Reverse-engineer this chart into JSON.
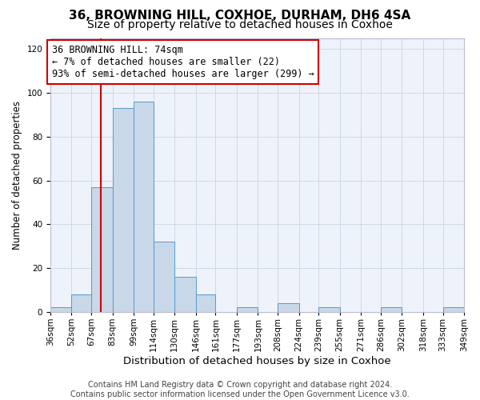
{
  "title": "36, BROWNING HILL, COXHOE, DURHAM, DH6 4SA",
  "subtitle": "Size of property relative to detached houses in Coxhoe",
  "xlabel": "Distribution of detached houses by size in Coxhoe",
  "ylabel": "Number of detached properties",
  "bin_labels": [
    "36sqm",
    "52sqm",
    "67sqm",
    "83sqm",
    "99sqm",
    "114sqm",
    "130sqm",
    "146sqm",
    "161sqm",
    "177sqm",
    "193sqm",
    "208sqm",
    "224sqm",
    "239sqm",
    "255sqm",
    "271sqm",
    "286sqm",
    "302sqm",
    "318sqm",
    "333sqm",
    "349sqm"
  ],
  "bin_edges": [
    36,
    52,
    67,
    83,
    99,
    114,
    130,
    146,
    161,
    177,
    193,
    208,
    224,
    239,
    255,
    271,
    286,
    302,
    318,
    333,
    349
  ],
  "bar_heights": [
    2,
    8,
    57,
    93,
    96,
    32,
    16,
    8,
    0,
    2,
    0,
    4,
    0,
    2,
    0,
    0,
    2,
    0,
    0,
    2
  ],
  "bar_color": "#c8d8e8",
  "bar_edge_color": "#5599cc",
  "vline_x": 74,
  "vline_color": "#cc0000",
  "annotation_line1": "36 BROWNING HILL: 74sqm",
  "annotation_line2": "← 7% of detached houses are smaller (22)",
  "annotation_line3": "93% of semi-detached houses are larger (299) →",
  "annotation_box_color": "#ffffff",
  "annotation_box_edge_color": "#cc0000",
  "ylim": [
    0,
    125
  ],
  "yticks": [
    0,
    20,
    40,
    60,
    80,
    100,
    120
  ],
  "grid_color": "#d0d8e8",
  "background_color": "#eef2fa",
  "footer_line1": "Contains HM Land Registry data © Crown copyright and database right 2024.",
  "footer_line2": "Contains public sector information licensed under the Open Government Licence v3.0.",
  "title_fontsize": 11,
  "subtitle_fontsize": 10,
  "xlabel_fontsize": 9.5,
  "ylabel_fontsize": 8.5,
  "tick_fontsize": 7.5,
  "annotation_fontsize": 8.5,
  "footer_fontsize": 7
}
